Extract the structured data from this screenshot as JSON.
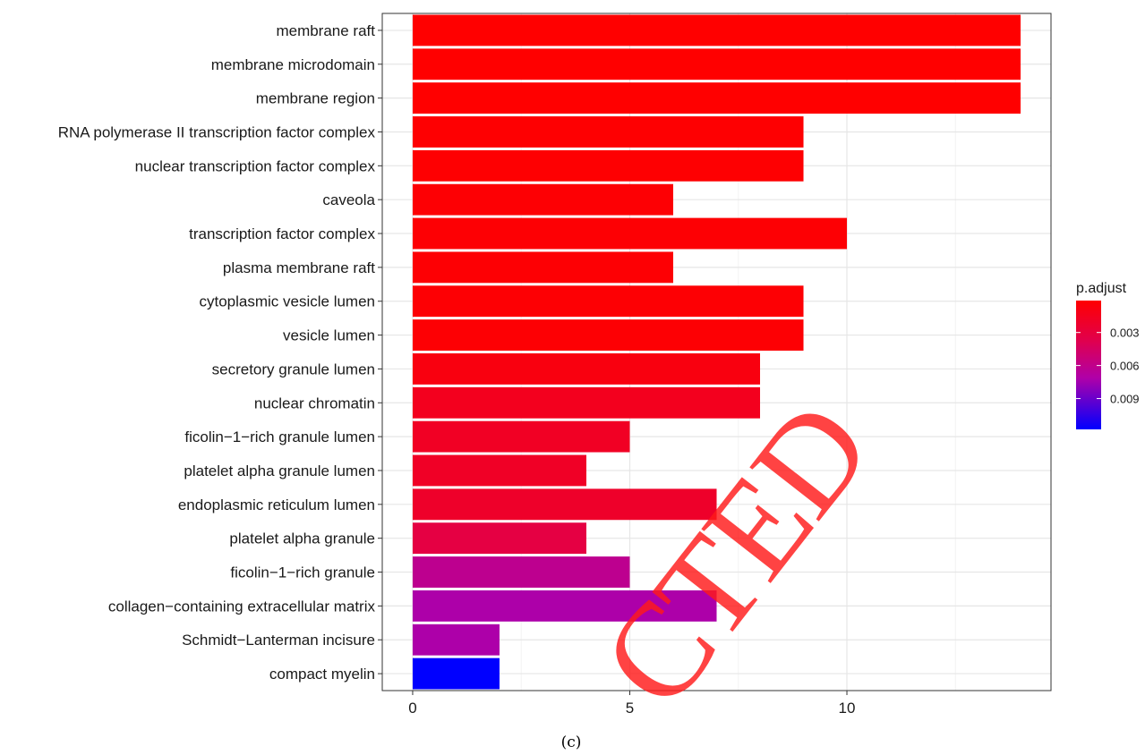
{
  "chart_data": {
    "type": "bar",
    "orientation": "horizontal",
    "categories": [
      "membrane raft",
      "membrane microdomain",
      "membrane region",
      "RNA polymerase II transcription factor complex",
      "nuclear transcription factor complex",
      "caveola",
      "transcription factor complex",
      "plasma membrane raft",
      "cytoplasmic vesicle lumen",
      "vesicle lumen",
      "secretory granule lumen",
      "nuclear chromatin",
      "ficolin−1−rich granule lumen",
      "platelet alpha granule lumen",
      "endoplasmic reticulum lumen",
      "platelet alpha granule",
      "ficolin−1−rich granule",
      "collagen−containing extracellular matrix",
      "Schmidt−Lanterman incisure",
      "compact myelin"
    ],
    "values": [
      14,
      14,
      14,
      9,
      9,
      6,
      10,
      6,
      9,
      9,
      8,
      8,
      5,
      4,
      7,
      4,
      5,
      7,
      2,
      2
    ],
    "p_adjust": [
      0.0001,
      0.0001,
      0.0001,
      0.0002,
      0.0002,
      0.0003,
      0.0003,
      0.0003,
      0.0003,
      0.0003,
      0.0008,
      0.0015,
      0.0018,
      0.0019,
      0.0021,
      0.0033,
      0.0062,
      0.0072,
      0.0072,
      0.0118
    ],
    "xlim": [
      -0.7,
      14.7
    ],
    "x_ticks": [
      0,
      5,
      10
    ],
    "x_tick_labels": [
      "0",
      "5",
      "10"
    ],
    "grid": true,
    "legend": {
      "title": "p.adjust",
      "placement": "right",
      "ticks": [
        0.003,
        0.006,
        0.009
      ],
      "tick_labels": [
        "0.003",
        "0.006",
        "0.009"
      ],
      "range": [
        0.0001,
        0.0118
      ],
      "color_low": "#ff0000",
      "color_high": "#0000ff"
    },
    "caption": "(c)",
    "watermark": "CTED"
  }
}
